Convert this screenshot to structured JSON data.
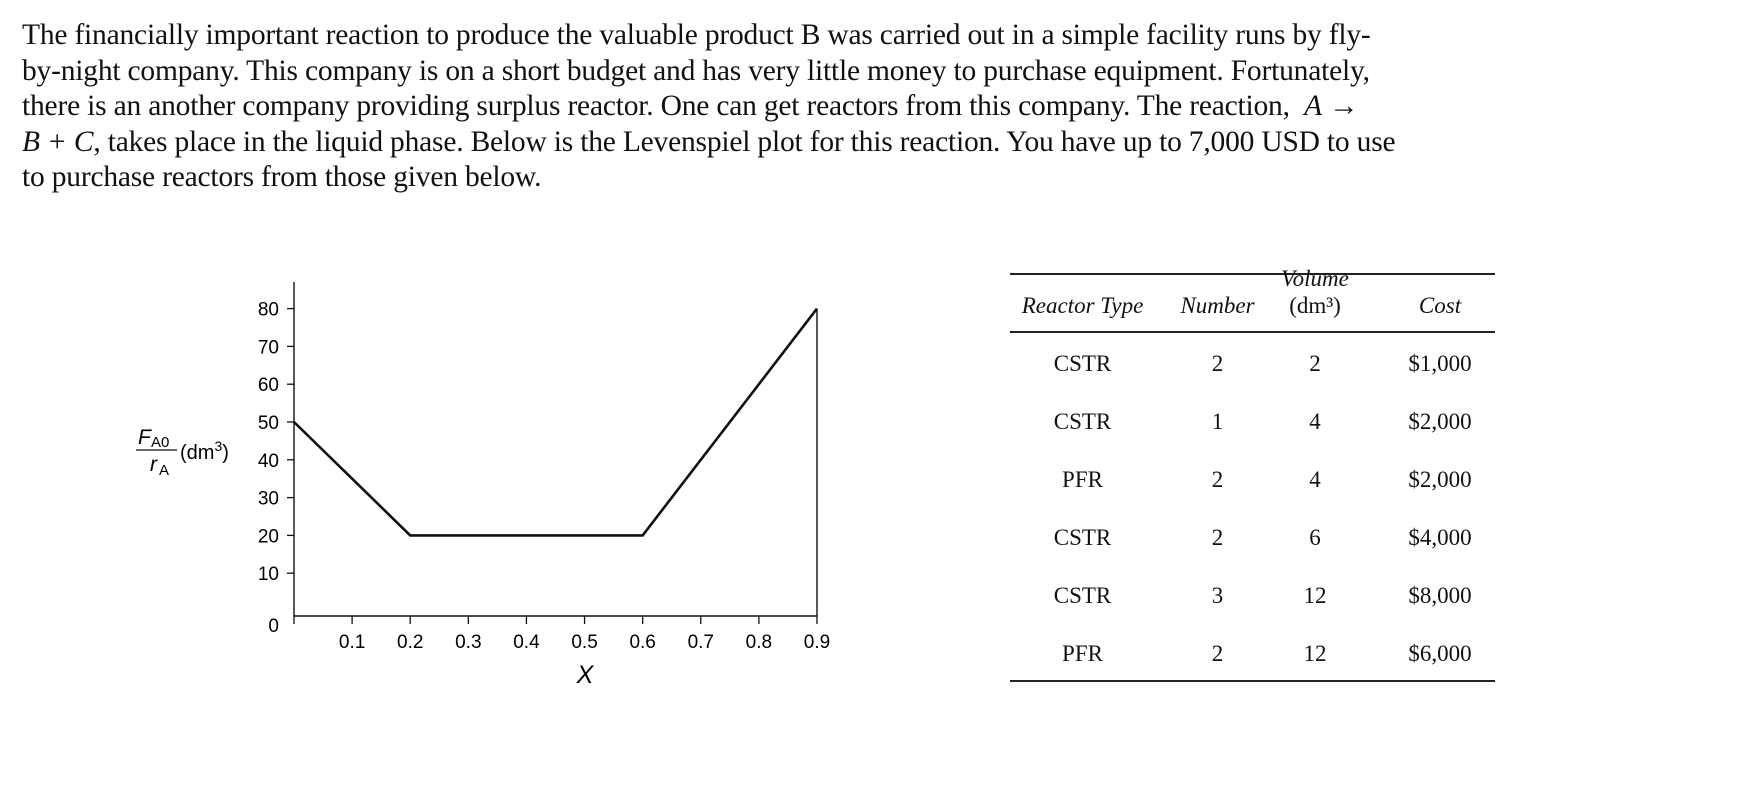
{
  "problem": {
    "line1": "The financially important reaction to produce the valuable product B was carried out in a simple facility runs by fly-",
    "line2": "by-night company. This company is on a short budget and has very little money to purchase equipment. Fortunately,",
    "line3_a": "there is an another company providing surplus reactor. One can get reactors from this company. The reaction,",
    "line3_var": "A",
    "line3_arrow": "→",
    "line4_eq": "B + C",
    "line4_b": ", takes place in the liquid phase. Below is the Levenspiel plot for this reaction. You have up to 7,000 USD to use",
    "line5": "to purchase reactors from those given below."
  },
  "chart_data": {
    "type": "line",
    "title": "",
    "xlabel": "X",
    "ylabel": "F_A0 / r_A (dm^3)",
    "ylabel_num": "F",
    "ylabel_num_sub": "A0",
    "ylabel_den": "r",
    "ylabel_den_sub": "A",
    "ylabel_unit": "(dm",
    "ylabel_unit_sup": "3",
    "ylabel_unit_close": ")",
    "x": [
      0.0,
      0.2,
      0.6,
      0.9
    ],
    "y": [
      50,
      20,
      20,
      80
    ],
    "xlim": [
      0,
      0.9
    ],
    "ylim": [
      0,
      85
    ],
    "xticks": [
      "0.1",
      "0.2",
      "0.3",
      "0.4",
      "0.5",
      "0.6",
      "0.7",
      "0.8",
      "0.9"
    ],
    "yticks": [
      "0",
      "10",
      "20",
      "30",
      "40",
      "50",
      "60",
      "70",
      "80"
    ],
    "grid": false,
    "legend": null
  },
  "table": {
    "headers": {
      "reactor_type": "Reactor Type",
      "number": "Number",
      "volume_l1": "Volume",
      "volume_l2": "(dm³)",
      "cost": "Cost"
    },
    "rows": [
      {
        "type": "CSTR",
        "number": "2",
        "volume": "2",
        "cost": "$1,000"
      },
      {
        "type": "CSTR",
        "number": "1",
        "volume": "4",
        "cost": "$2,000"
      },
      {
        "type": "PFR",
        "number": "2",
        "volume": "4",
        "cost": "$2,000"
      },
      {
        "type": "CSTR",
        "number": "2",
        "volume": "6",
        "cost": "$4,000"
      },
      {
        "type": "CSTR",
        "number": "3",
        "volume": "12",
        "cost": "$8,000"
      },
      {
        "type": "PFR",
        "number": "2",
        "volume": "12",
        "cost": "$6,000"
      }
    ]
  }
}
